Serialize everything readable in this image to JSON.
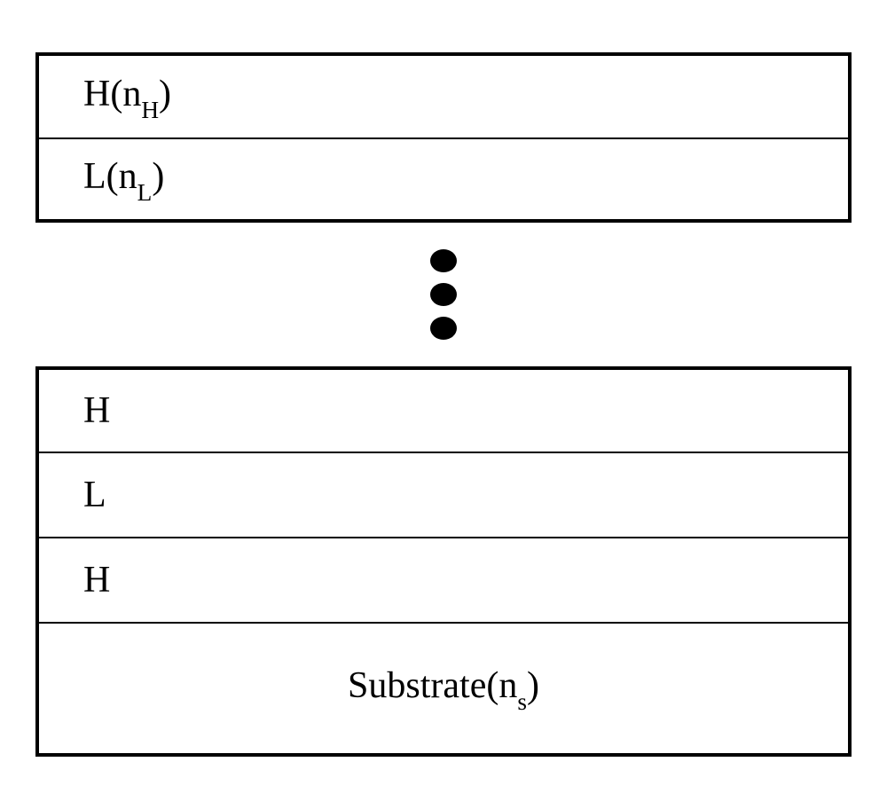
{
  "diagram": {
    "type": "layer-stack",
    "background_color": "#ffffff",
    "border_color": "#000000",
    "border_width": 4,
    "text_color": "#000000",
    "font_family": "Times New Roman",
    "label_fontsize": 42,
    "subscript_scale": 0.65,
    "dot_color": "#000000",
    "dot_width": 30,
    "dot_height": 26,
    "dot_count": 3,
    "dot_gap": 12,
    "layers_top": [
      {
        "prefix": "H(n",
        "subscript": "H",
        "suffix": ")",
        "height": 96
      },
      {
        "prefix": "L(n",
        "subscript": "L",
        "suffix": ")",
        "height": 96
      }
    ],
    "layers_bottom": [
      {
        "prefix": "H",
        "subscript": "",
        "suffix": "",
        "height": 96
      },
      {
        "prefix": "L",
        "subscript": "",
        "suffix": "",
        "height": 96
      },
      {
        "prefix": "H",
        "subscript": "",
        "suffix": "",
        "height": 96
      }
    ],
    "substrate": {
      "prefix": "Substrate(n",
      "subscript": "s",
      "suffix": ")",
      "height": 152
    }
  }
}
